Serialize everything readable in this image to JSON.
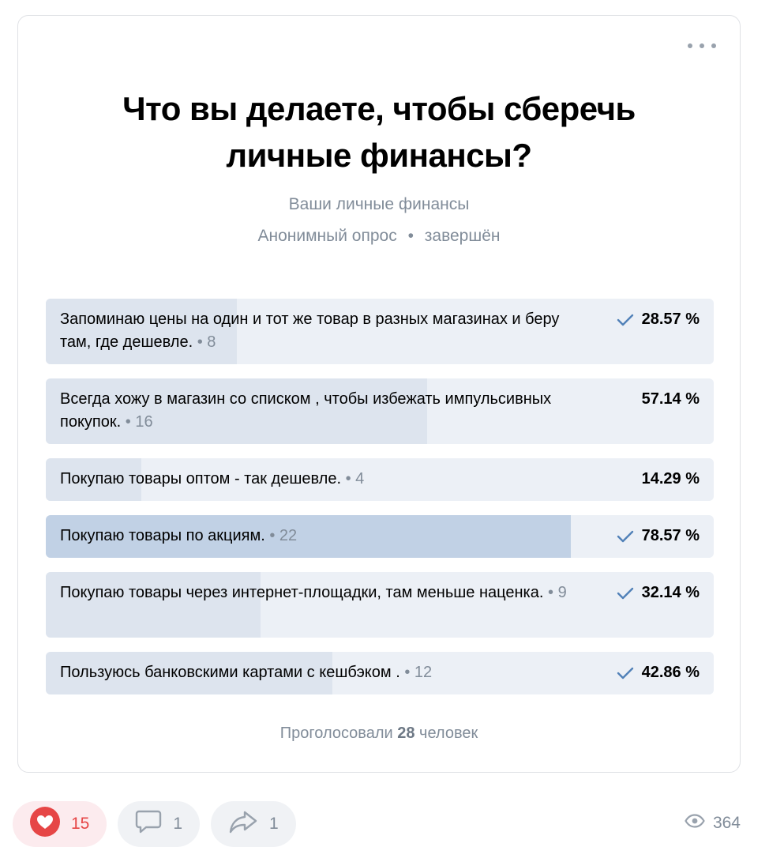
{
  "poll": {
    "title": "Что вы делаете, чтобы сберечь личные финансы?",
    "subtitle": "Ваши личные финансы",
    "type": "Анонимный опрос",
    "status": "завершён",
    "separator": "•",
    "options": [
      {
        "text": "Запоминаю цены на один и тот же товар в разных магазинах и беру там, где дешевле.",
        "count": "8",
        "percent": "28.57 %",
        "share": 0.2857,
        "checked": true
      },
      {
        "text": "Всегда хожу в магазин со списком , чтобы избежать импульсивных покупок.",
        "count": "16",
        "percent": "57.14 %",
        "share": 0.5714,
        "checked": false
      },
      {
        "text": "Покупаю товары оптом - так дешевле.",
        "count": "4",
        "percent": "14.29 %",
        "share": 0.1429,
        "checked": false
      },
      {
        "text": "Покупаю товары по акциям.",
        "count": "22",
        "percent": "78.57 %",
        "share": 0.7857,
        "checked": true
      },
      {
        "text": "Покупаю товары через интернет-площадки, там меньше наценка.",
        "count": "9",
        "percent": "32.14 %",
        "share": 0.3214,
        "checked": true
      },
      {
        "text": "Пользуюсь банковскими картами с кешбэком .",
        "count": "12",
        "percent": "42.86 %",
        "share": 0.4286,
        "checked": true
      }
    ],
    "voted_prefix": "Проголосовали",
    "voted_count": "28",
    "voted_suffix": "человек"
  },
  "footer": {
    "likes": "15",
    "comments": "1",
    "shares": "1",
    "views": "364"
  },
  "colors": {
    "accent": "#5181b8",
    "like": "#e64646",
    "secondary_text": "#818c99"
  },
  "icons": [
    "more-icon",
    "check-icon",
    "heart-icon",
    "comment-icon",
    "share-icon",
    "eye-icon"
  ]
}
